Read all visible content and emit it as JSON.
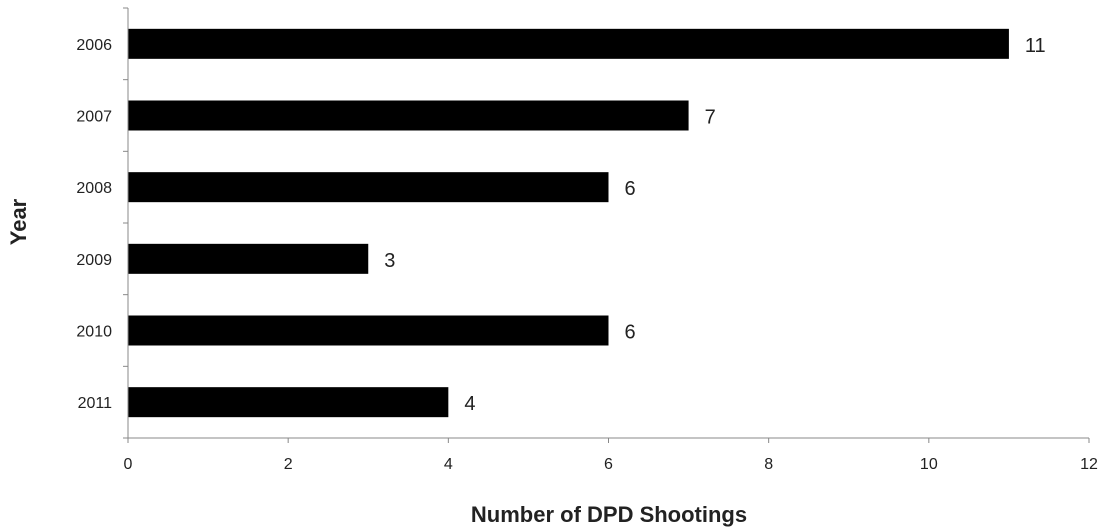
{
  "chart_data": {
    "type": "bar",
    "orientation": "horizontal",
    "categories": [
      "2006",
      "2007",
      "2008",
      "2009",
      "2010",
      "2011"
    ],
    "values": [
      11,
      7,
      6,
      3,
      6,
      4
    ],
    "xlabel": "Number of DPD Shootings",
    "ylabel": "Year",
    "xlim": [
      0,
      12
    ],
    "xticks": [
      0,
      2,
      4,
      6,
      8,
      10,
      12
    ],
    "grid": false,
    "legend": "none",
    "bar_color": "#000000",
    "axis_color": "#888888",
    "text_color": "#222222"
  }
}
